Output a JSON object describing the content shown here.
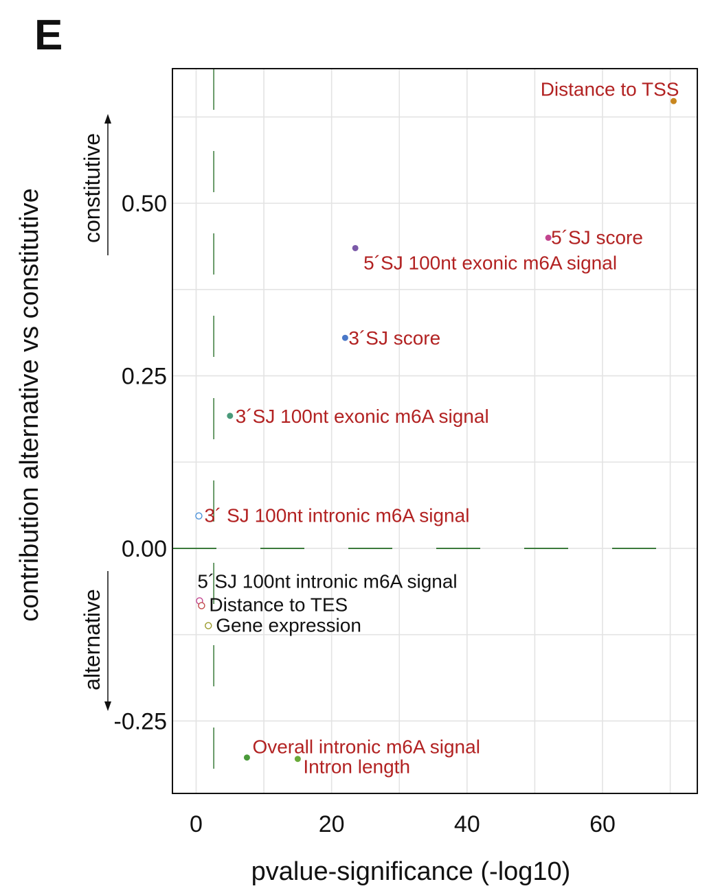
{
  "panel_letter": "E",
  "chart_data": {
    "type": "scatter",
    "xlabel": "pvalue-significance (-log10)",
    "ylabel": "contribution alternative vs constitutive",
    "direction_labels": {
      "up": "constitutive",
      "down": "alternative"
    },
    "xlim": [
      -3.5,
      74
    ],
    "ylim": [
      -0.355,
      0.695
    ],
    "x_ticks": [
      0,
      20,
      40,
      60
    ],
    "x_tick_labels": [
      "0",
      "20",
      "40",
      "60"
    ],
    "y_ticks": [
      0.5,
      0.25,
      0.0,
      -0.25
    ],
    "y_tick_labels": [
      "0.50",
      "0.25",
      "0.00",
      "-0.25"
    ],
    "x_minor_grid": [
      10,
      30,
      50,
      70
    ],
    "y_minor_grid": [
      0.625,
      0.375,
      0.125,
      -0.125
    ],
    "grid": true,
    "reference_lines": {
      "vertical_x": 2.6,
      "horizontal_y": 0.0,
      "color": "#3a7a3a"
    },
    "points": [
      {
        "label": "Distance to TSS",
        "x": 70.5,
        "y": 0.648,
        "color": "#c8861e",
        "significant": true,
        "label_color": "#b22222"
      },
      {
        "label": "5´SJ score",
        "x": 52.0,
        "y": 0.45,
        "color": "#c2458f",
        "significant": true,
        "label_color": "#b22222"
      },
      {
        "label": "5´SJ 100nt exonic m6A signal",
        "x": 23.5,
        "y": 0.435,
        "color": "#7b59a8",
        "significant": true,
        "label_color": "#b22222"
      },
      {
        "label": "3´SJ score",
        "x": 22.0,
        "y": 0.305,
        "color": "#4a78c8",
        "significant": true,
        "label_color": "#b22222"
      },
      {
        "label": "3´SJ 100nt exonic m6A signal",
        "x": 5.0,
        "y": 0.192,
        "color": "#4a9a7a",
        "significant": true,
        "label_color": "#b22222"
      },
      {
        "label": "3´ SJ 100nt intronic m6A signal",
        "x": 0.4,
        "y": 0.047,
        "color": "#4a90d8",
        "significant": false,
        "label_color": "#b22222"
      },
      {
        "label": "5´SJ 100nt intronic m6A signal",
        "x": 0.5,
        "y": -0.076,
        "color": "#c2458f",
        "significant": false,
        "label_color": "#111111"
      },
      {
        "label": "Distance to TES",
        "x": 0.8,
        "y": -0.083,
        "color": "#c24a4a",
        "significant": false,
        "label_color": "#111111"
      },
      {
        "label": "Gene expression",
        "x": 1.8,
        "y": -0.112,
        "color": "#9a9a2a",
        "significant": false,
        "label_color": "#111111"
      },
      {
        "label": "Overall intronic m6A signal",
        "x": 7.5,
        "y": -0.303,
        "color": "#4a9a3a",
        "significant": true,
        "label_color": "#b22222"
      },
      {
        "label": "Intron length",
        "x": 15.0,
        "y": -0.305,
        "color": "#6aaa3a",
        "significant": true,
        "label_color": "#b22222"
      }
    ]
  }
}
